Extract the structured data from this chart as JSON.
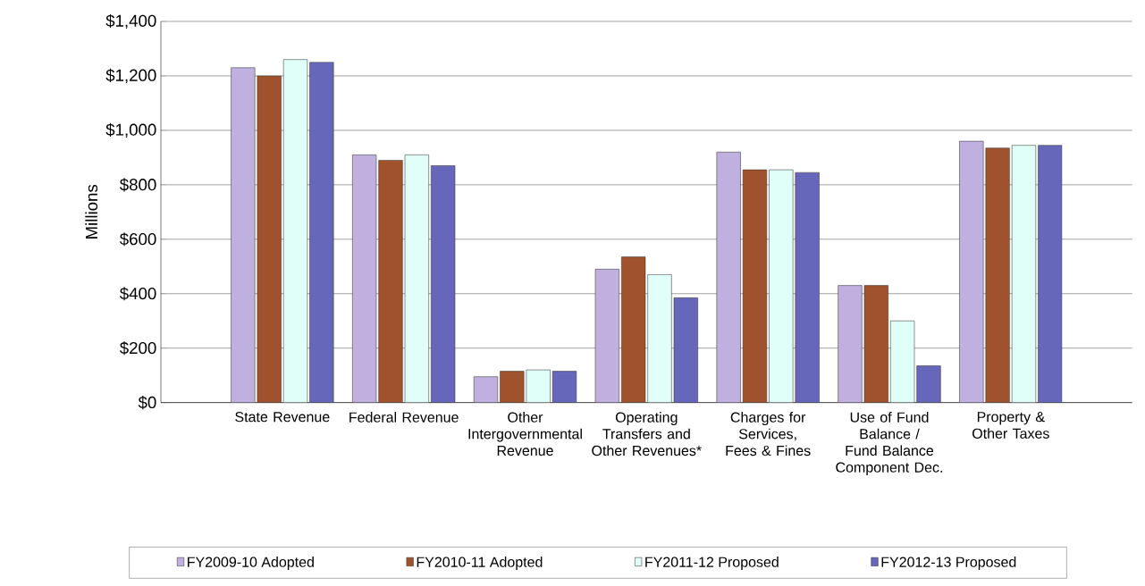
{
  "chart_data": {
    "type": "bar",
    "ylabel": "Millions",
    "categories": [
      "State Revenue",
      "Federal Revenue",
      "Other Intergovernmental Revenue",
      "Operating Transfers and Other Revenues*",
      "Charges for Services, Fees & Fines",
      "Use of Fund Balance / Fund Balance Component Dec.",
      "Property & Other Taxes"
    ],
    "series": [
      {
        "name": "FY2009-10 Adopted",
        "color": "#c0b0e0",
        "values": [
          1230,
          910,
          95,
          490,
          920,
          430,
          960
        ]
      },
      {
        "name": "FY2010-11 Adopted",
        "color": "#a0522d",
        "values": [
          1200,
          890,
          115,
          535,
          855,
          430,
          935
        ]
      },
      {
        "name": "FY2011-12 Proposed",
        "color": "#e0fff8",
        "values": [
          1260,
          910,
          120,
          470,
          855,
          300,
          945
        ]
      },
      {
        "name": "FY2012-13 Proposed",
        "color": "#6666bb",
        "values": [
          1250,
          870,
          115,
          385,
          845,
          135,
          945
        ]
      }
    ],
    "ylim": [
      0,
      1400
    ],
    "yticks": [
      {
        "value": 0,
        "label": "$0"
      },
      {
        "value": 200,
        "label": "$200"
      },
      {
        "value": 400,
        "label": "$400"
      },
      {
        "value": 600,
        "label": "$600"
      },
      {
        "value": 800,
        "label": "$800"
      },
      {
        "value": 1000,
        "label": "$1,000"
      },
      {
        "value": 1200,
        "label": "$1,200"
      },
      {
        "value": 1400,
        "label": "$1,400"
      }
    ],
    "grid": "y",
    "legend": "bottom"
  }
}
